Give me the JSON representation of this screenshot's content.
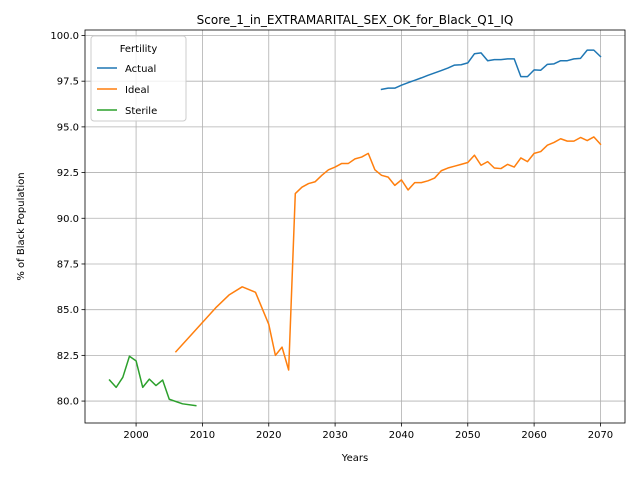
{
  "chart_data": {
    "type": "line",
    "title": "Score_1_in_EXTRAMARITAL_SEX_OK_for_Black_Q1_IQ",
    "xlabel": "Years",
    "ylabel": "% of Black Population",
    "xlim": [
      1992.3,
      2073.7
    ],
    "ylim": [
      78.8,
      100.3
    ],
    "xticks": [
      2000,
      2010,
      2020,
      2030,
      2040,
      2050,
      2060,
      2070
    ],
    "yticks": [
      80.0,
      82.5,
      85.0,
      87.5,
      90.0,
      92.5,
      95.0,
      97.5,
      100.0
    ],
    "ytick_format": "0.0",
    "grid": true,
    "legend": {
      "title": "Fertility",
      "placement": "upper-left"
    },
    "series": [
      {
        "name": "Actual",
        "color": "#1f77b4",
        "x": [
          2037,
          2038,
          2039,
          2040,
          2041,
          2042,
          2043,
          2044,
          2045,
          2046,
          2047,
          2048,
          2049,
          2050,
          2051,
          2052,
          2053,
          2054,
          2055,
          2056,
          2057,
          2058,
          2059,
          2060,
          2061,
          2062,
          2063,
          2064,
          2065,
          2066,
          2067,
          2068,
          2069,
          2070
        ],
        "y": [
          97.05,
          97.12,
          97.12,
          97.28,
          97.42,
          97.55,
          97.68,
          97.82,
          97.95,
          98.08,
          98.22,
          98.38,
          98.4,
          98.5,
          99.0,
          99.05,
          98.62,
          98.68,
          98.68,
          98.72,
          98.72,
          97.75,
          97.75,
          98.12,
          98.1,
          98.42,
          98.45,
          98.62,
          98.62,
          98.72,
          98.75,
          99.2,
          99.2,
          98.85
        ]
      },
      {
        "name": "Ideal",
        "color": "#ff7f0e",
        "x": [
          2006,
          2008,
          2010,
          2012,
          2014,
          2016,
          2018,
          2020,
          2021,
          2022,
          2023,
          2024,
          2025,
          2026,
          2027,
          2028,
          2029,
          2030,
          2031,
          2032,
          2033,
          2034,
          2035,
          2036,
          2037,
          2038,
          2039,
          2040,
          2041,
          2042,
          2043,
          2044,
          2045,
          2046,
          2047,
          2048,
          2049,
          2050,
          2051,
          2052,
          2053,
          2054,
          2055,
          2056,
          2057,
          2058,
          2059,
          2060,
          2061,
          2062,
          2063,
          2064,
          2065,
          2066,
          2067,
          2068,
          2069,
          2070
        ],
        "y": [
          82.7,
          83.5,
          84.3,
          85.1,
          85.8,
          86.25,
          85.95,
          84.2,
          82.5,
          82.95,
          81.7,
          91.35,
          91.7,
          91.9,
          92.0,
          92.35,
          92.65,
          92.8,
          93.0,
          93.0,
          93.25,
          93.35,
          93.55,
          92.65,
          92.35,
          92.25,
          91.8,
          92.1,
          91.55,
          91.95,
          91.95,
          92.05,
          92.2,
          92.6,
          92.75,
          92.85,
          92.95,
          93.05,
          93.45,
          92.9,
          93.1,
          92.75,
          92.72,
          92.95,
          92.8,
          93.3,
          93.1,
          93.55,
          93.65,
          94.0,
          94.15,
          94.35,
          94.22,
          94.22,
          94.42,
          94.25,
          94.45,
          94.05
        ]
      },
      {
        "name": "Sterile",
        "color": "#2ca02c",
        "x": [
          1996,
          1997,
          1998,
          1999,
          2000,
          2001,
          2002,
          2003,
          2004,
          2005,
          2007,
          2009
        ],
        "y": [
          81.15,
          80.75,
          81.3,
          82.45,
          82.2,
          80.75,
          81.2,
          80.85,
          81.15,
          80.1,
          79.85,
          79.75
        ]
      }
    ]
  }
}
